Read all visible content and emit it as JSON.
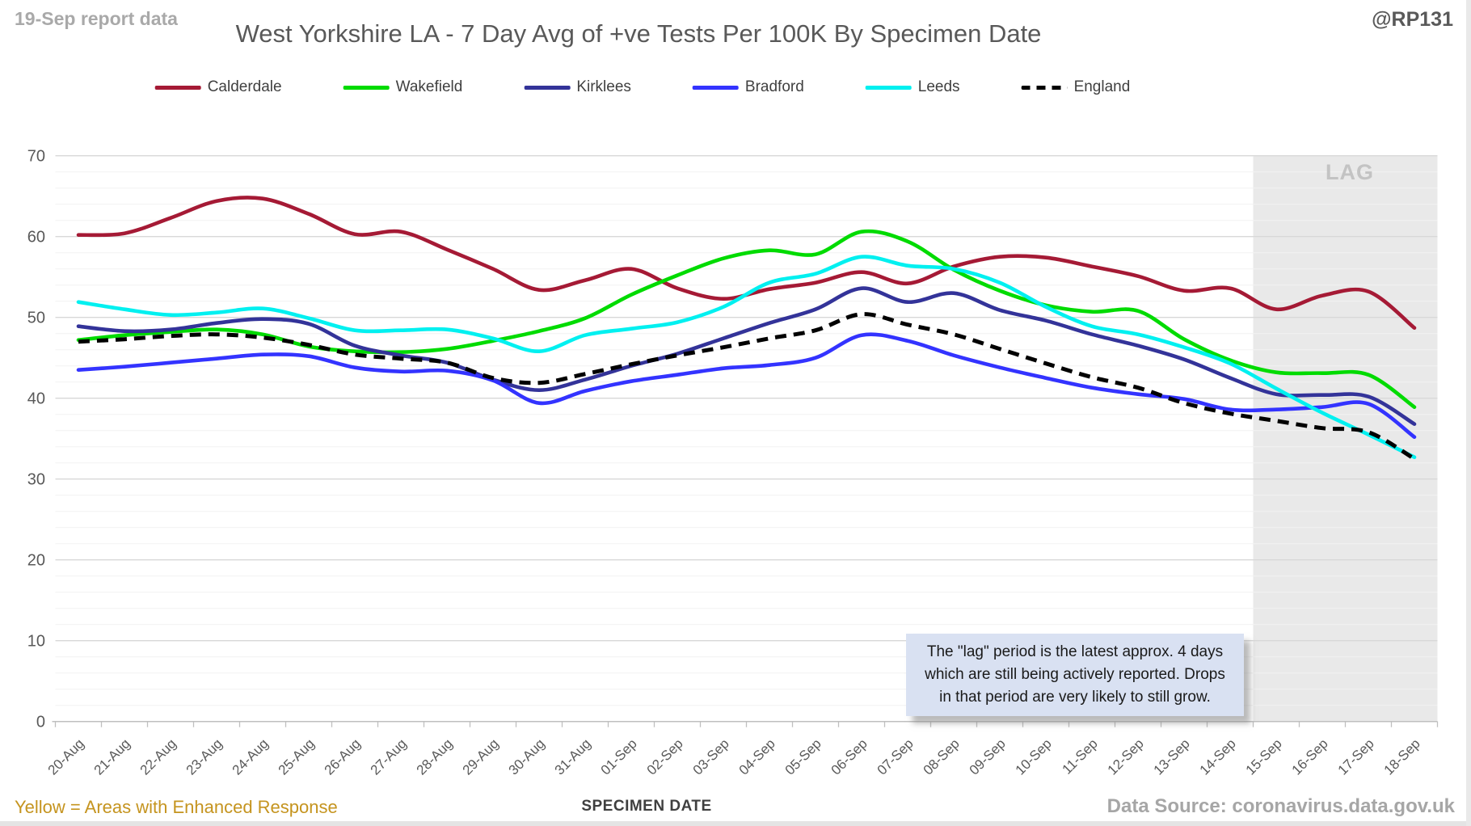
{
  "header": {
    "report_note": "19-Sep report data",
    "title": "West Yorkshire LA - 7 Day Avg of +ve Tests Per 100K By Specimen Date",
    "handle": "@RP131"
  },
  "lag": {
    "label": "LAG",
    "annotation_lines": [
      "The \"lag\" period is the latest approx. 4 days",
      "which are still being actively reported.  Drops",
      "in that period are very likely to still grow."
    ]
  },
  "footer": {
    "yellow_note": "Yellow = Areas with Enhanced Response",
    "xlabel": "SPECIMEN DATE",
    "data_source": "Data Source: coronavirus.data.gov.uk"
  },
  "chart_data": {
    "type": "line",
    "title": "West Yorkshire LA - 7 Day Avg of +ve Tests Per 100K By Specimen Date",
    "xlabel": "SPECIMEN DATE",
    "ylabel": "",
    "ylim": [
      0,
      70
    ],
    "ytick_step": 10,
    "minor_gridline_step": 2,
    "grid": true,
    "legend_position": "top",
    "lag_start": "15-Sep",
    "lag_end": "18-Sep",
    "x": [
      "20-Aug",
      "21-Aug",
      "22-Aug",
      "23-Aug",
      "24-Aug",
      "25-Aug",
      "26-Aug",
      "27-Aug",
      "28-Aug",
      "29-Aug",
      "30-Aug",
      "31-Aug",
      "01-Sep",
      "02-Sep",
      "03-Sep",
      "04-Sep",
      "05-Sep",
      "06-Sep",
      "07-Sep",
      "08-Sep",
      "09-Sep",
      "10-Sep",
      "11-Sep",
      "12-Sep",
      "13-Sep",
      "14-Sep",
      "15-Sep",
      "16-Sep",
      "17-Sep",
      "18-Sep"
    ],
    "series": [
      {
        "name": "Calderdale",
        "color": "#a51a35",
        "dash": "solid",
        "values": [
          60.2,
          60.4,
          62.3,
          64.4,
          64.7,
          62.8,
          60.3,
          60.6,
          58.4,
          56.0,
          53.4,
          54.6,
          56.0,
          53.6,
          52.3,
          53.5,
          54.3,
          55.6,
          54.2,
          56.3,
          57.5,
          57.4,
          56.3,
          55.1,
          53.3,
          53.6,
          51.0,
          52.7,
          53.2,
          48.7
        ]
      },
      {
        "name": "Wakefield",
        "color": "#00db00",
        "dash": "solid",
        "values": [
          47.2,
          47.8,
          48.2,
          48.5,
          47.9,
          46.4,
          45.8,
          45.7,
          46.1,
          47.1,
          48.3,
          49.9,
          52.8,
          55.2,
          57.3,
          58.3,
          57.8,
          60.6,
          59.4,
          55.9,
          53.3,
          51.5,
          50.7,
          50.8,
          47.3,
          44.7,
          43.2,
          43.1,
          42.9,
          38.9
        ]
      },
      {
        "name": "Kirklees",
        "color": "#333399",
        "dash": "solid",
        "values": [
          48.9,
          48.3,
          48.5,
          49.3,
          49.8,
          49.2,
          46.5,
          45.3,
          44.4,
          42.3,
          41.0,
          42.3,
          44.0,
          45.5,
          47.4,
          49.3,
          51.0,
          53.6,
          51.9,
          53.0,
          50.9,
          49.6,
          47.9,
          46.5,
          44.8,
          42.5,
          40.5,
          40.4,
          40.2,
          36.8
        ]
      },
      {
        "name": "Bradford",
        "color": "#3333ff",
        "dash": "solid",
        "values": [
          43.5,
          43.9,
          44.4,
          44.9,
          45.4,
          45.2,
          43.8,
          43.3,
          43.4,
          42.2,
          39.4,
          40.9,
          42.1,
          42.9,
          43.7,
          44.1,
          45.0,
          47.8,
          47.1,
          45.3,
          43.8,
          42.5,
          41.3,
          40.5,
          39.9,
          38.6,
          38.6,
          38.9,
          39.3,
          35.2
        ]
      },
      {
        "name": "Leeds",
        "color": "#00f0f0",
        "dash": "solid",
        "values": [
          51.9,
          51.0,
          50.3,
          50.6,
          51.1,
          49.9,
          48.4,
          48.4,
          48.5,
          47.4,
          45.8,
          47.8,
          48.6,
          49.4,
          51.3,
          54.3,
          55.4,
          57.5,
          56.4,
          56.0,
          54.3,
          51.3,
          48.9,
          47.9,
          46.3,
          44.3,
          41.2,
          38.2,
          35.5,
          32.7
        ]
      },
      {
        "name": "England",
        "color": "#000000",
        "dash": "dashed",
        "values": [
          47.0,
          47.3,
          47.7,
          47.9,
          47.5,
          46.6,
          45.4,
          44.9,
          44.4,
          42.5,
          41.9,
          43.0,
          44.2,
          45.3,
          46.3,
          47.4,
          48.4,
          50.4,
          49.1,
          47.9,
          46.1,
          44.3,
          42.6,
          41.3,
          39.4,
          38.1,
          37.2,
          36.3,
          35.8,
          32.5
        ]
      }
    ]
  }
}
